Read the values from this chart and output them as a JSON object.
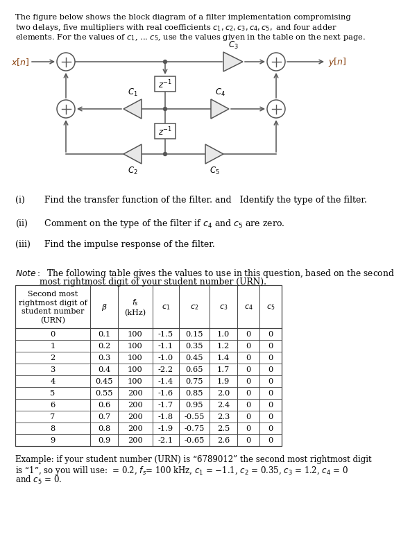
{
  "title_lines": [
    "The figure below shows the block diagram of a filter implementation compromising",
    "two delays, five multipliers with real coefficients $c_1, c_2, c_3, c_4, c_5,$ and four adder",
    "elements. For the values of $c_1$, ... $c_5$, use the values given in the table on the next page."
  ],
  "q1": "(i)       Find the transfer function of the filter. and   Identify the type of the filter.",
  "q2": "(ii)      Comment on the type of the filter if $c_4$ and $c_5$ are zero.",
  "q3": "(iii)     Find the impulse response of the filter.",
  "note1": "Note:  The following table gives the values to use in this question, based on the second",
  "note2": "            most rightmost digit of your student number (URN).",
  "ex1": "Example: if your student number (URN) is “6789012” the second most rightmost digit",
  "ex2": "is “1”, so you will use:  = 0.2, $f_s$= 100 kHz, $c_1$ = $-$1.1, $c_2$ = 0.35, $c_3$ = 1.2, $c_4$ = 0",
  "ex3": "and $c_5$ = 0.",
  "table_data": [
    [
      "0",
      "0.1",
      "100",
      "-1.5",
      "0.15",
      "1.0",
      "0",
      "0"
    ],
    [
      "1",
      "0.2",
      "100",
      "-1.1",
      "0.35",
      "1.2",
      "0",
      "0"
    ],
    [
      "2",
      "0.3",
      "100",
      "-1.0",
      "0.45",
      "1.4",
      "0",
      "0"
    ],
    [
      "3",
      "0.4",
      "100",
      "-2.2",
      "0.65",
      "1.7",
      "0",
      "0"
    ],
    [
      "4",
      "0.45",
      "100",
      "-1.4",
      "0.75",
      "1.9",
      "0",
      "0"
    ],
    [
      "5",
      "0.55",
      "200",
      "-1.6",
      "0.85",
      "2.0",
      "0",
      "0"
    ],
    [
      "6",
      "0.6",
      "200",
      "-1.7",
      "0.95",
      "2.4",
      "0",
      "0"
    ],
    [
      "7",
      "0.7",
      "200",
      "-1.8",
      "-0.55",
      "2.3",
      "0",
      "0"
    ],
    [
      "8",
      "0.8",
      "200",
      "-1.9",
      "-0.75",
      "2.5",
      "0",
      "0"
    ],
    [
      "9",
      "0.9",
      "200",
      "-2.1",
      "-0.65",
      "2.6",
      "0",
      "0"
    ]
  ],
  "bg_color": "#ffffff",
  "text_color": "#000000",
  "line_color": "#555555"
}
